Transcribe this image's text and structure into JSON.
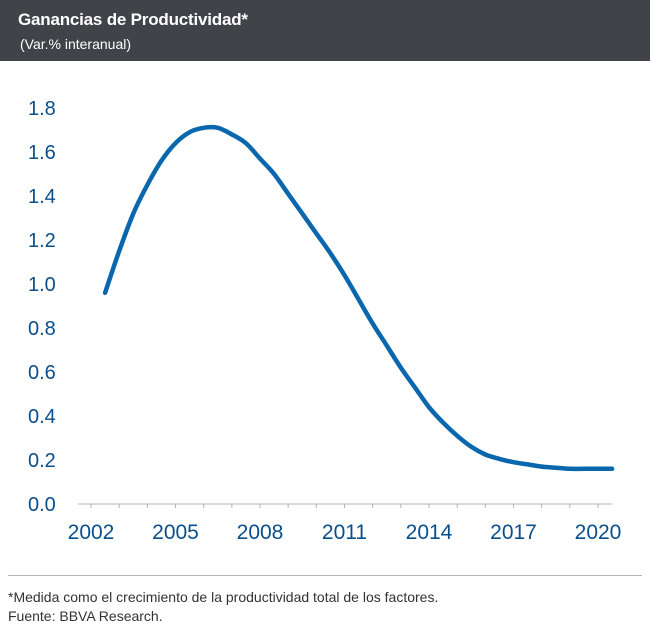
{
  "header": {
    "title": "Ganancias de Productividad*",
    "subtitle": "(Var.% interanual)"
  },
  "footer": {
    "note": "*Medida como el crecimiento de la productividad total de los factores.",
    "source": "Fuente: BBVA Research."
  },
  "colors": {
    "header_bg": "#404448",
    "line": "#0a67ad",
    "axis_text": "#0a4f8c"
  },
  "chart_data": {
    "type": "line",
    "title": "Ganancias de Productividad*",
    "subtitle": "(Var.% interanual)",
    "xlabel": "",
    "ylabel": "",
    "xlim": [
      2002,
      2020
    ],
    "ylim": [
      0,
      1.8
    ],
    "xticks": [
      2002,
      2005,
      2008,
      2011,
      2014,
      2017,
      2020
    ],
    "xtick_labels": [
      "2002",
      "2005",
      "2008",
      "2011",
      "2014",
      "2017",
      "2020"
    ],
    "yticks": [
      0.0,
      0.2,
      0.4,
      0.6,
      0.8,
      1.0,
      1.2,
      1.4,
      1.6,
      1.8
    ],
    "ytick_labels": [
      "0.0",
      "0.2",
      "0.4",
      "0.6",
      "0.8",
      "1.0",
      "1.2",
      "1.4",
      "1.6",
      "1.8"
    ],
    "grid": false,
    "series": [
      {
        "name": "Ganancias de Productividad",
        "x": [
          2002.5,
          2003,
          2003.5,
          2004,
          2004.5,
          2005,
          2005.5,
          2006,
          2006.5,
          2007,
          2007.5,
          2008,
          2008.5,
          2009,
          2009.5,
          2010,
          2010.5,
          2011,
          2011.5,
          2012,
          2012.5,
          2013,
          2013.5,
          2014,
          2014.5,
          2015,
          2015.5,
          2016,
          2016.5,
          2017,
          2017.5,
          2018,
          2018.5,
          2019,
          2019.5,
          2020,
          2020.5
        ],
        "y": [
          0.96,
          1.15,
          1.32,
          1.45,
          1.56,
          1.64,
          1.69,
          1.71,
          1.71,
          1.68,
          1.64,
          1.57,
          1.5,
          1.41,
          1.32,
          1.23,
          1.14,
          1.04,
          0.93,
          0.82,
          0.72,
          0.62,
          0.53,
          0.44,
          0.37,
          0.31,
          0.26,
          0.225,
          0.205,
          0.19,
          0.18,
          0.17,
          0.165,
          0.16,
          0.16,
          0.16,
          0.16
        ]
      }
    ]
  }
}
